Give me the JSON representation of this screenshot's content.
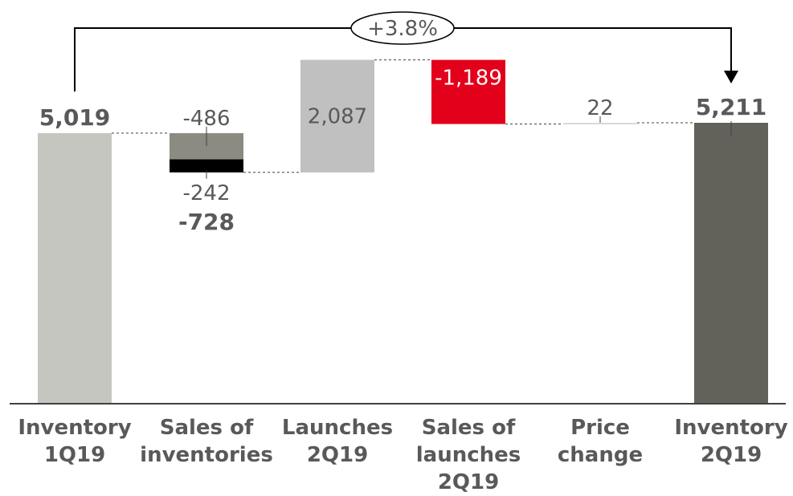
{
  "chart_data": {
    "type": "waterfall",
    "unit_note": "",
    "ylim": [
      0,
      5211
    ],
    "categories": [
      [
        "Inventory",
        "1Q19"
      ],
      [
        "Sales of",
        "inventories"
      ],
      [
        "Launches",
        "2Q19"
      ],
      [
        "Sales of",
        "launches",
        "2Q19"
      ],
      [
        "Price",
        "change"
      ],
      [
        "Inventory",
        "2Q19"
      ]
    ],
    "steps": [
      {
        "kind": "total",
        "value": 5019,
        "label": "5,019",
        "color": "#c6c6c0"
      },
      {
        "kind": "stacked_delta",
        "value": -728,
        "total_label": "-728",
        "parts": [
          {
            "value": -486,
            "label": "-486",
            "color": "#8b8b82"
          },
          {
            "value": -242,
            "label": "-242",
            "color": "#000000"
          }
        ]
      },
      {
        "kind": "delta",
        "value": 2087,
        "label": "2,087",
        "color": "#c0c0c0"
      },
      {
        "kind": "delta",
        "value": -1189,
        "label": "-1,189",
        "color": "#e2001a"
      },
      {
        "kind": "delta",
        "value": 22,
        "label": "22",
        "color": "#d9d9d9"
      },
      {
        "kind": "total",
        "value": 5211,
        "label": "5,211",
        "color": "#63625a"
      }
    ],
    "change_annotation": "+3.8%"
  }
}
